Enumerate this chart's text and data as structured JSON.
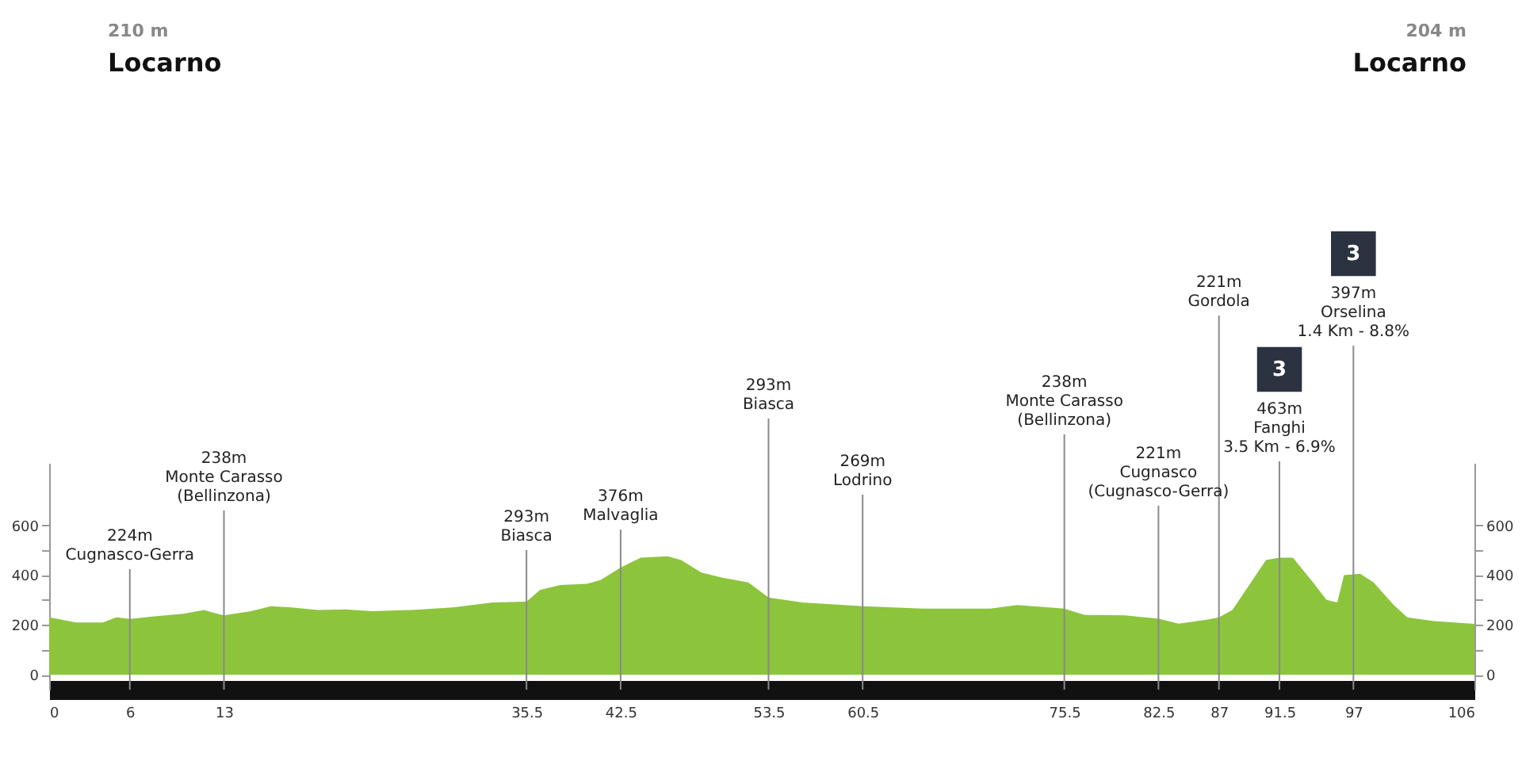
{
  "chart_data": {
    "type": "area",
    "x": [
      0,
      2,
      4,
      5,
      6,
      8,
      10,
      11.5,
      12.5,
      13,
      15,
      16.5,
      18,
      20,
      22,
      24,
      27,
      30,
      33,
      35.5,
      36.5,
      38,
      40,
      41,
      42.5,
      44,
      46,
      47,
      48.5,
      50,
      52,
      53.5,
      56,
      60.5,
      65,
      70,
      72,
      75.5,
      77,
      80,
      82.5,
      84,
      86,
      87,
      88,
      89.5,
      90.5,
      91.5,
      92.5,
      94,
      95,
      95.8,
      96.3,
      97.5,
      98.5,
      100,
      101,
      103,
      106
    ],
    "series": [
      {
        "color": "#8cc43c",
        "values": [
          230,
          210,
          210,
          230,
          224,
          235,
          245,
          260,
          245,
          238,
          255,
          275,
          270,
          260,
          262,
          255,
          260,
          270,
          290,
          293,
          340,
          360,
          365,
          380,
          430,
          470,
          475,
          460,
          410,
          390,
          370,
          310,
          290,
          275,
          265,
          265,
          280,
          265,
          240,
          238,
          225,
          205,
          220,
          230,
          260,
          380,
          460,
          470,
          470,
          370,
          300,
          290,
          400,
          405,
          370,
          280,
          230,
          215,
          204
        ]
      }
    ],
    "xlim": [
      0,
      106
    ],
    "xticks": [
      0,
      6,
      13,
      35.5,
      42.5,
      53.5,
      60.5,
      75.5,
      82.5,
      87,
      91.5,
      97,
      106
    ],
    "ylim": [
      -60,
      850
    ],
    "yticks": [
      0,
      {
        "value": 100,
        "label": null
      },
      200,
      {
        "value": 300,
        "label": null
      },
      400,
      {
        "value": 500,
        "label": null
      },
      600
    ],
    "y2lim": [
      -60,
      850
    ],
    "y2ticks": [
      0,
      {
        "value": 100,
        "label": null
      },
      200,
      {
        "value": 300,
        "label": null
      },
      400,
      {
        "value": 500,
        "label": null
      },
      600
    ],
    "grid": false,
    "ref_lines": [
      {
        "axis": "x",
        "value": 6,
        "label": "224m\nCugnasco-Gerra"
      },
      {
        "axis": "x",
        "value": 13,
        "label": "238m\nMonte Carasso\n(Bellinzona)"
      },
      {
        "axis": "x",
        "value": 35.5,
        "label": "293m\nBiasca"
      },
      {
        "axis": "x",
        "value": 42.5,
        "label": "376m\nMalvaglia"
      },
      {
        "axis": "x",
        "value": 53.5,
        "label": "293m\nBiasca"
      },
      {
        "axis": "x",
        "value": 60.5,
        "label": "269m\nLodrino"
      },
      {
        "axis": "x",
        "value": 75.5,
        "label": "238m\nMonte Carasso\n(Bellinzona)"
      },
      {
        "axis": "x",
        "value": 82.5,
        "label": "221m\nCugnasco\n(Cugnasco-Gerra)"
      },
      {
        "axis": "x",
        "value": 87,
        "label": "221m\nGordola"
      },
      {
        "axis": "x",
        "value": 91.5,
        "label": "463m\nFanghi\n3.5 Km - 6.9%"
      },
      {
        "axis": "x",
        "value": 97,
        "label": "397m\nOrselina\n1.4 Km - 8.8%"
      }
    ],
    "annotations": [
      "210 m",
      "Locarno",
      "204 m",
      "Locarno",
      "3",
      "3"
    ]
  }
}
